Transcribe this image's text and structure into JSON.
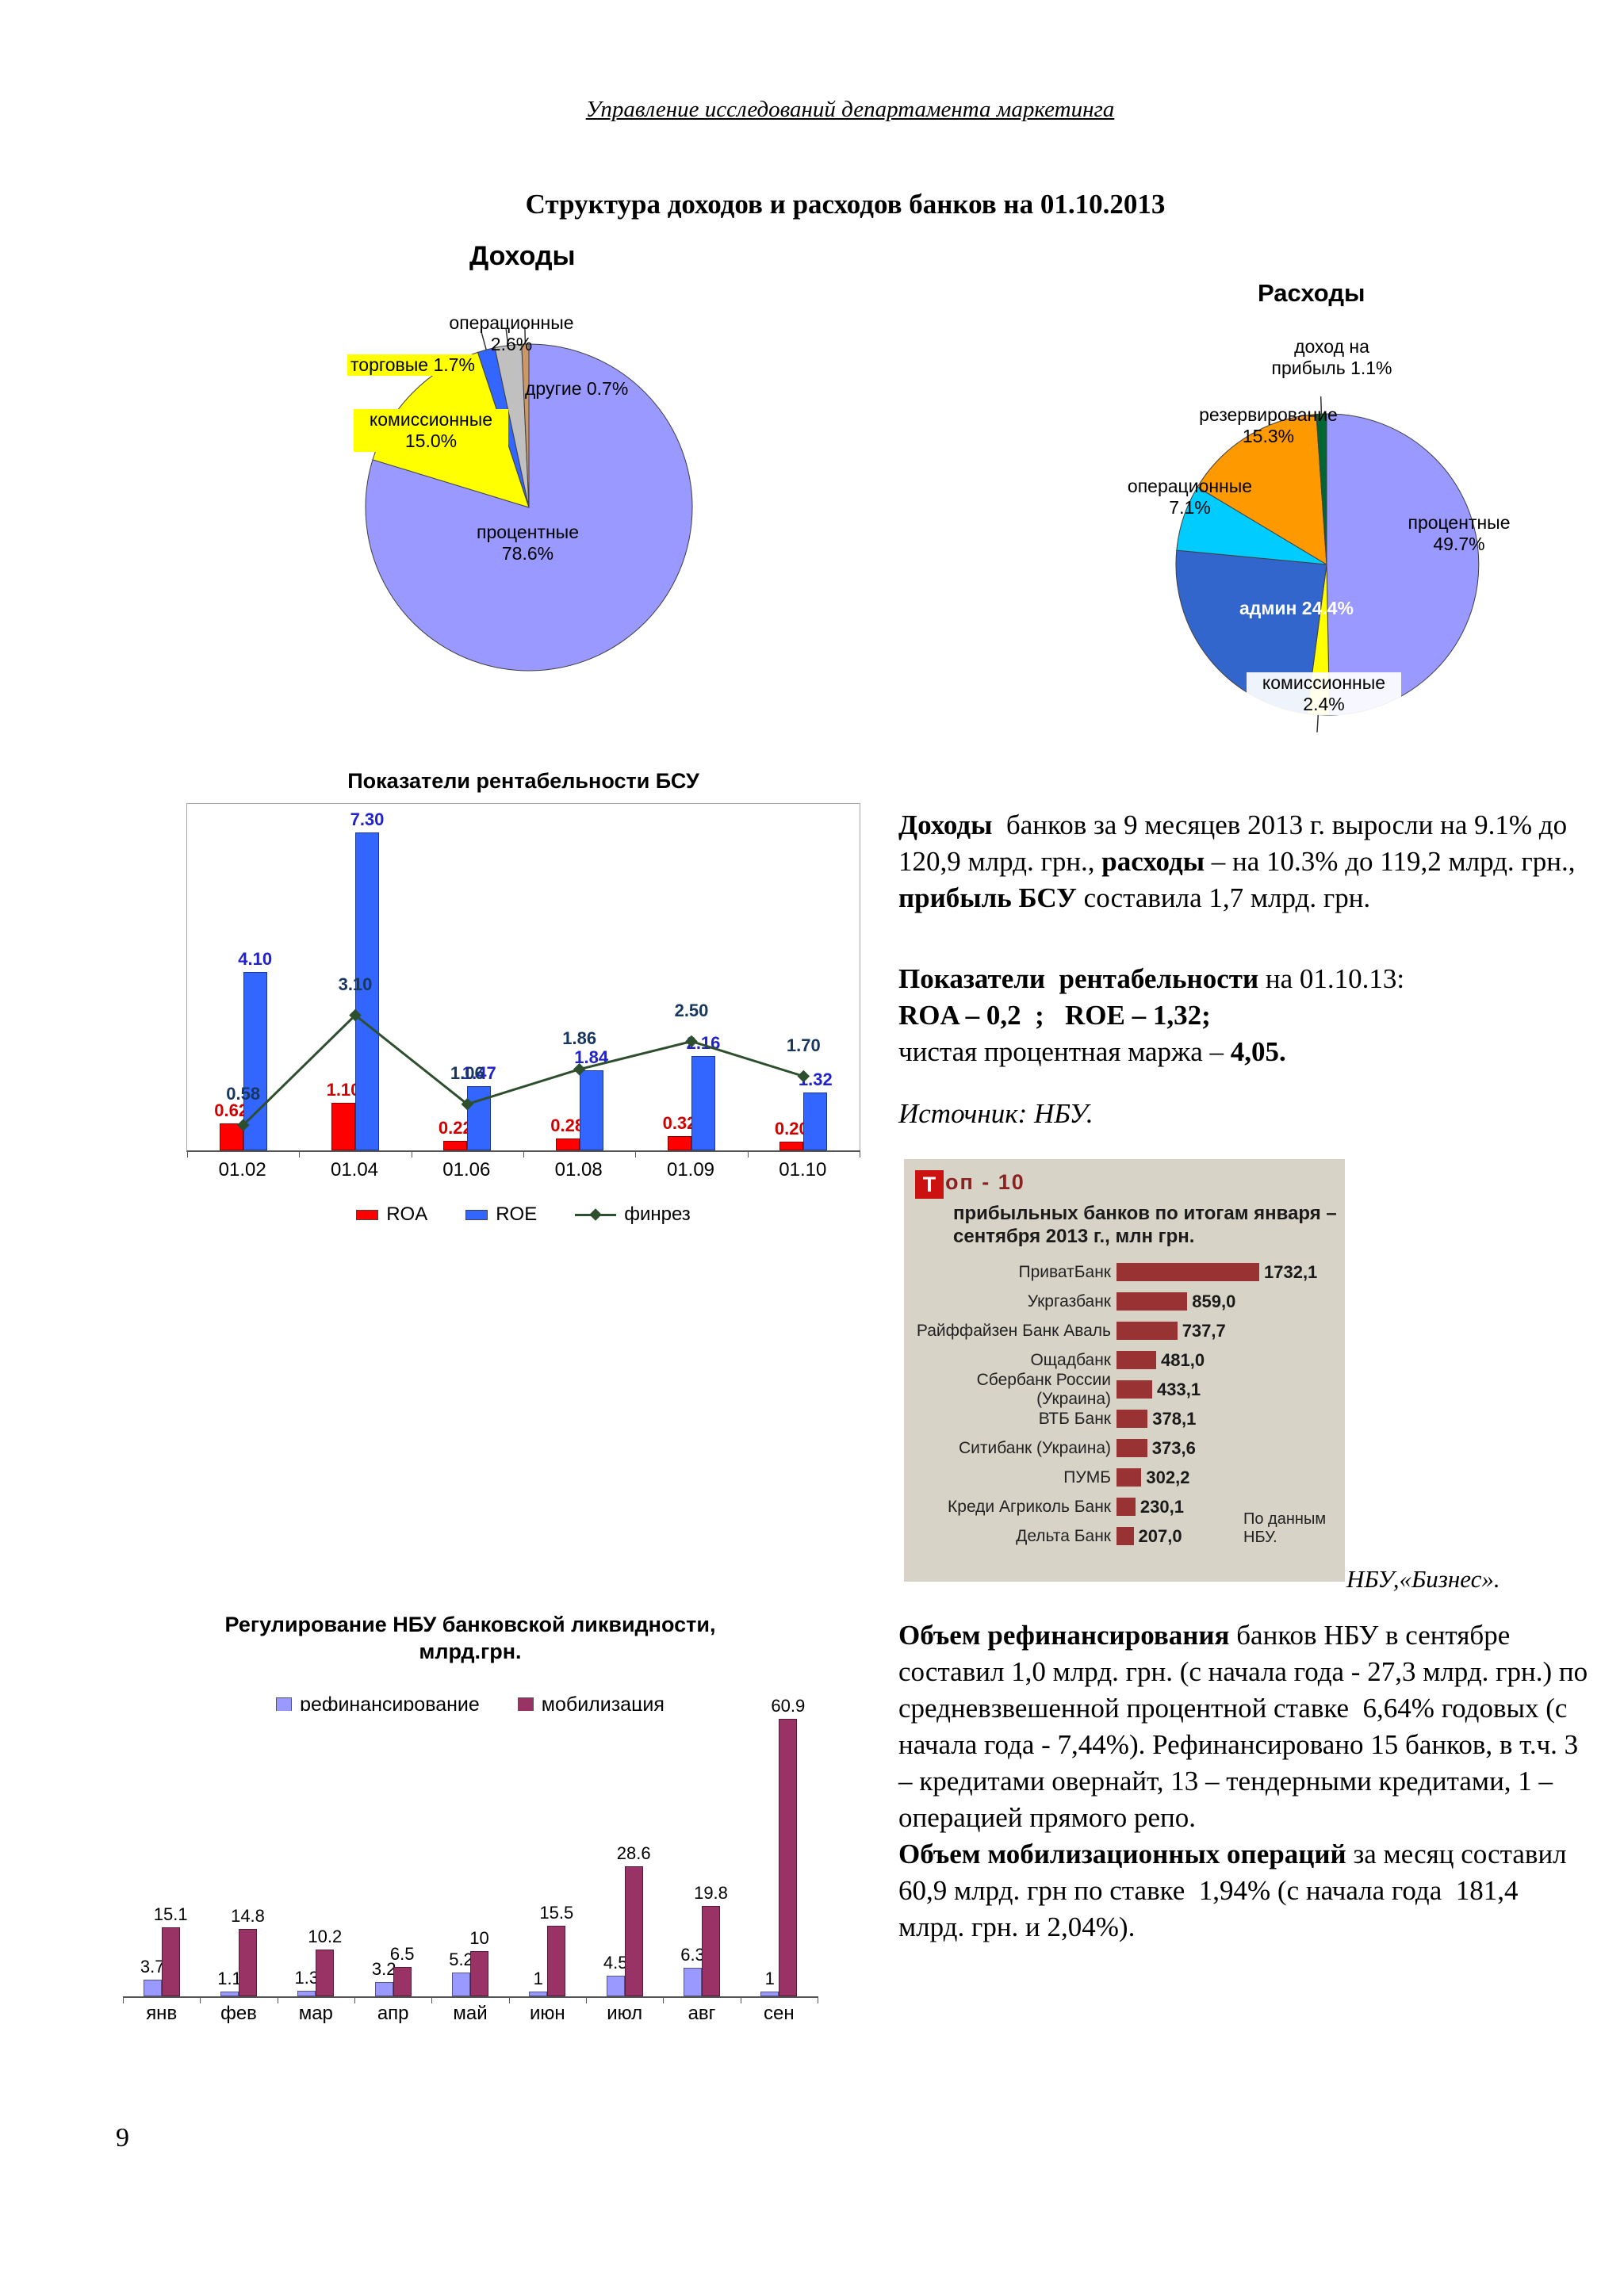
{
  "page": {
    "header": "Управление исследований департамента маркетинга",
    "title": "Структура доходов и расходов банков на 01.10.2013",
    "page_number": "9",
    "source_caption": "НБУ,«Бизнес»."
  },
  "chart_data": [
    {
      "id": "income-pie",
      "type": "pie",
      "title": "Доходы",
      "slices": [
        {
          "label": "процентные",
          "value": 78.6,
          "color": "#9999FF",
          "display": "процентные\n78.6%"
        },
        {
          "label": "комиссионные",
          "value": 15.0,
          "color": "#FFFF00",
          "display": "комиссионные\n15.0%"
        },
        {
          "label": "торговые",
          "value": 1.7,
          "color": "#3366FF",
          "display": "торговые 1.7%"
        },
        {
          "label": "операционные",
          "value": 2.6,
          "color": "#C0C0C0",
          "display": "операционные\n2.6%"
        },
        {
          "label": "другие",
          "value": 0.7,
          "color": "#CC9966",
          "display": "другие 0.7%"
        }
      ]
    },
    {
      "id": "expense-pie",
      "type": "pie",
      "title": "Расходы",
      "slices": [
        {
          "label": "процентные",
          "value": 49.7,
          "color": "#9999FF",
          "display": "процентные\n49.7%"
        },
        {
          "label": "комиссионные",
          "value": 2.4,
          "color": "#FFFF00",
          "display": "комиссионные\n2.4%"
        },
        {
          "label": "админ",
          "value": 24.4,
          "color": "#3366CC",
          "display": "админ 24.4%"
        },
        {
          "label": "операционные",
          "value": 7.1,
          "color": "#00CCFF",
          "display": "операционные\n7.1%"
        },
        {
          "label": "резервирование",
          "value": 15.3,
          "color": "#FF9900",
          "display": "резервирование\n15.3%"
        },
        {
          "label": "доход на прибыль",
          "value": 1.1,
          "color": "#006633",
          "display": "доход на\nприбыль 1.1%"
        }
      ]
    },
    {
      "id": "profitability",
      "type": "bar",
      "title": "Показатели рентабельности  БСУ",
      "categories": [
        "01.02",
        "01.04",
        "01.06",
        "01.08",
        "01.09",
        "01.10"
      ],
      "series": [
        {
          "name": "ROA",
          "kind": "bar",
          "color": "#FF0000",
          "label_color": "#D00000",
          "values": [
            0.62,
            1.1,
            0.22,
            0.28,
            0.32,
            0.2
          ],
          "labels": [
            "0.62",
            "1.10",
            "0.22",
            "0.28",
            "0.32",
            "0.20"
          ]
        },
        {
          "name": "ROE",
          "kind": "bar",
          "color": "#3366FF",
          "label_color": "#2222CC",
          "values": [
            4.1,
            7.3,
            1.47,
            1.84,
            2.16,
            1.32
          ],
          "labels": [
            "4.10",
            "7.30",
            "1.47",
            "1.84",
            "2.16",
            "1.32"
          ]
        },
        {
          "name": "финрез",
          "kind": "line",
          "color": "#2D4F2D",
          "label_color": "#17375E",
          "values": [
            0.58,
            3.1,
            1.06,
            1.86,
            2.5,
            1.7
          ],
          "labels": [
            "0.58",
            "3.10",
            "1.06",
            "1.86",
            "2.50",
            "1.70"
          ]
        }
      ]
    },
    {
      "id": "liquidity",
      "type": "bar",
      "title": "Регулирование НБУ банковской ликвидности,\nмлрд.грн.",
      "categories": [
        "янв",
        "фев",
        "мар",
        "апр",
        "май",
        "июн",
        "июл",
        "авг",
        "сен"
      ],
      "series": [
        {
          "name": "рефинансирование",
          "kind": "bar",
          "color": "#9999FF",
          "label_color": "#000000",
          "values": [
            3.7,
            1.1,
            1.3,
            3.2,
            5.2,
            1,
            4.5,
            6.3,
            1
          ],
          "labels": [
            "3.7",
            "1.1",
            "1.3",
            "3.2",
            "5.2",
            "1",
            "4.5",
            "6.3",
            "1"
          ]
        },
        {
          "name": "мобилизация",
          "kind": "bar",
          "color": "#993366",
          "label_color": "#000000",
          "values": [
            15.1,
            14.8,
            10.2,
            6.5,
            10,
            15.5,
            28.6,
            19.8,
            60.9
          ],
          "labels": [
            "15.1",
            "14.8",
            "10.2",
            "6.5",
            "10",
            "15.5",
            "28.6",
            "19.8",
            "60.9"
          ]
        }
      ]
    },
    {
      "id": "top10-banks",
      "type": "bar-horizontal",
      "badge_letter": "Т",
      "title_rest": "оп - 10",
      "subtitle": "прибыльных банков по итогам января –\nсентября 2013 г., млн грн.",
      "bar_color": "#993333",
      "note": "По данным НБУ.",
      "rows": [
        {
          "label": "ПриватБанк",
          "value": 1732.1,
          "display": "1732,1"
        },
        {
          "label": "Укргазбанк",
          "value": 859.0,
          "display": "859,0"
        },
        {
          "label": "Райффайзен Банк Аваль",
          "value": 737.7,
          "display": "737,7"
        },
        {
          "label": "Ощадбанк",
          "value": 481.0,
          "display": "481,0"
        },
        {
          "label": "Сбербанк России (Украина)",
          "value": 433.1,
          "display": "433,1"
        },
        {
          "label": "ВТБ Банк",
          "value": 378.1,
          "display": "378,1"
        },
        {
          "label": "Ситибанк (Украина)",
          "value": 373.6,
          "display": "373,6"
        },
        {
          "label": "ПУМБ",
          "value": 302.2,
          "display": "302,2"
        },
        {
          "label": "Креди Агриколь Банк",
          "value": 230.1,
          "display": "230,1"
        },
        {
          "label": "Дельта Банк",
          "value": 207.0,
          "display": "207,0"
        }
      ]
    }
  ],
  "text_blocks": {
    "income": [
      {
        "t": "Доходы",
        "b": true
      },
      {
        "t": "  банков за 9 месяцев 2013 г. выросли на 9.1% до 120,9 млрд. грн., "
      },
      {
        "t": "расходы",
        "b": true
      },
      {
        "t": " – на 10.3% до 119,2 млрд. грн., "
      },
      {
        "t": "прибыль БСУ",
        "b": true
      },
      {
        "t": " составила 1,7 млрд. грн."
      }
    ],
    "profitability": [
      {
        "t": "Показатели  рентабельности",
        "b": true
      },
      {
        "t": " на 01.10.13:\n"
      },
      {
        "t": "ROA – 0,2  ;   ROE – 1,32;",
        "b": true
      },
      {
        "t": "\nчистая процентная маржа – "
      },
      {
        "t": "4,05.",
        "b": true
      }
    ],
    "source": [
      {
        "t": "Источник: НБУ.",
        "i": true
      }
    ],
    "refinancing": [
      {
        "t": "Объем рефинансирования",
        "b": true
      },
      {
        "t": " банков НБУ в сентябре составил 1,0 млрд. грн. (с начала года - 27,3 млрд. грн.) по средневзвешенной процентной ставке  6,64% годовых (с начала года - 7,44%). Рефинансировано 15 банков, в т.ч. 3 – кредитами овернайт, 13 – тендерными кредитами, 1 – операцией прямого репо.\n"
      },
      {
        "t": "Объем мобилизационных операций",
        "b": true
      },
      {
        "t": " за месяц составил 60,9 млрд. грн по ставке  1,94% (с начала года  181,4 млрд. грн. и 2,04%)."
      }
    ]
  }
}
